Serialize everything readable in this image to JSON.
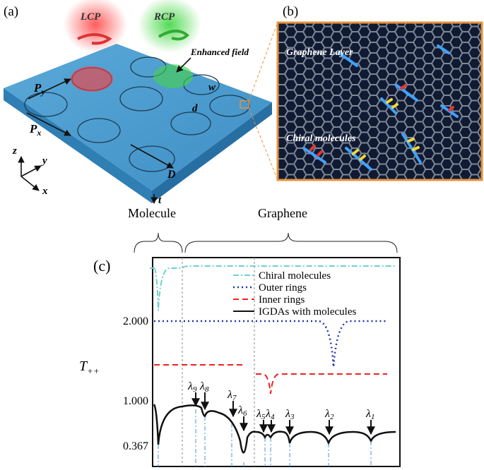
{
  "panel_a": {
    "label": "(a)",
    "beams": [
      "LCP",
      "RCP"
    ],
    "annotation": "Enhanced field",
    "periods": [
      {
        "main": "P",
        "sub": "y"
      },
      {
        "main": "P",
        "sub": "x"
      }
    ],
    "dimensions": [
      "w",
      "d",
      "D",
      "t"
    ],
    "axes": [
      "z",
      "y",
      "x"
    ]
  },
  "panel_b": {
    "label": "(b)",
    "texts": [
      "Graphene Layer",
      "Chiral molecules"
    ]
  },
  "panel_c": {
    "label": "(c)",
    "regions": [
      "Molecule",
      "Graphene"
    ],
    "y_label": {
      "main": "T",
      "sub": "++"
    },
    "y_tick_labels": [
      "2.000",
      "1.000",
      "0.367"
    ],
    "legend": [
      "Chiral molecules",
      "Outer rings",
      "Inner rings",
      "IGDAs with molecules"
    ],
    "resonances": [
      {
        "symbol": "λ",
        "index": "9"
      },
      {
        "symbol": "λ",
        "index": "8"
      },
      {
        "symbol": "λ",
        "index": "7"
      },
      {
        "symbol": "λ",
        "index": "6"
      },
      {
        "symbol": "λ",
        "index": "5"
      },
      {
        "symbol": "λ",
        "index": "4"
      },
      {
        "symbol": "λ",
        "index": "3"
      },
      {
        "symbol": "λ",
        "index": "2"
      },
      {
        "symbol": "λ",
        "index": "1"
      }
    ]
  }
}
